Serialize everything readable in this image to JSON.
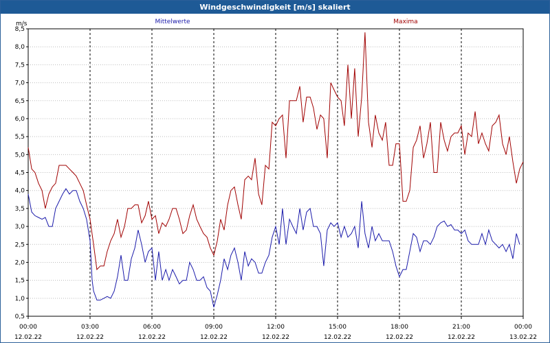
{
  "window": {
    "title": "Windgeschwindigkeit [m/s] skaliert"
  },
  "chart_data": {
    "type": "line",
    "title": "Windgeschwindigkeit [m/s] skaliert",
    "ylabel": "m/s",
    "xlabel": "",
    "ylim": [
      0.5,
      8.5
    ],
    "y_ticks": [
      "0,5",
      "1,0",
      "1,5",
      "2,0",
      "2,5",
      "3,0",
      "3,5",
      "4,0",
      "4,5",
      "5,0",
      "5,5",
      "6,0",
      "6,5",
      "7,0",
      "7,5",
      "8,0",
      "8,5"
    ],
    "x_range_hours": [
      0,
      24
    ],
    "x_ticks": [
      {
        "time": "00:00",
        "date": "12.02.22"
      },
      {
        "time": "03:00",
        "date": "12.02.22"
      },
      {
        "time": "06:00",
        "date": "12.02.22"
      },
      {
        "time": "09:00",
        "date": "12.02.22"
      },
      {
        "time": "12:00",
        "date": "12.02.22"
      },
      {
        "time": "15:00",
        "date": "12.02.22"
      },
      {
        "time": "18:00",
        "date": "12.02.22"
      },
      {
        "time": "21:00",
        "date": "12.02.22"
      },
      {
        "time": "00:00",
        "date": "13.02.22"
      }
    ],
    "grid": true,
    "legend_position": "top",
    "series": [
      {
        "name": "Mittelwerte",
        "color": "#1a1aaa",
        "points": [
          [
            0.0,
            3.9
          ],
          [
            0.17,
            3.4
          ],
          [
            0.33,
            3.3
          ],
          [
            0.5,
            3.25
          ],
          [
            0.67,
            3.2
          ],
          [
            0.83,
            3.25
          ],
          [
            1.0,
            3.0
          ],
          [
            1.17,
            3.0
          ],
          [
            1.33,
            3.5
          ],
          [
            1.5,
            3.7
          ],
          [
            1.67,
            3.9
          ],
          [
            1.83,
            4.05
          ],
          [
            2.0,
            3.9
          ],
          [
            2.17,
            4.0
          ],
          [
            2.33,
            4.0
          ],
          [
            2.5,
            3.7
          ],
          [
            2.67,
            3.5
          ],
          [
            2.83,
            3.2
          ],
          [
            3.0,
            2.6
          ],
          [
            3.1,
            1.5
          ],
          [
            3.17,
            1.2
          ],
          [
            3.33,
            0.95
          ],
          [
            3.5,
            0.95
          ],
          [
            3.67,
            1.0
          ],
          [
            3.83,
            1.05
          ],
          [
            4.0,
            1.0
          ],
          [
            4.17,
            1.2
          ],
          [
            4.33,
            1.6
          ],
          [
            4.5,
            2.2
          ],
          [
            4.67,
            1.5
          ],
          [
            4.83,
            1.5
          ],
          [
            5.0,
            2.1
          ],
          [
            5.17,
            2.4
          ],
          [
            5.33,
            2.9
          ],
          [
            5.5,
            2.5
          ],
          [
            5.67,
            2.0
          ],
          [
            5.83,
            2.3
          ],
          [
            6.0,
            2.4
          ],
          [
            6.17,
            1.5
          ],
          [
            6.33,
            2.3
          ],
          [
            6.5,
            1.5
          ],
          [
            6.67,
            1.8
          ],
          [
            6.83,
            1.5
          ],
          [
            7.0,
            1.8
          ],
          [
            7.17,
            1.6
          ],
          [
            7.33,
            1.4
          ],
          [
            7.5,
            1.5
          ],
          [
            7.67,
            1.5
          ],
          [
            7.83,
            2.0
          ],
          [
            8.0,
            1.8
          ],
          [
            8.17,
            1.5
          ],
          [
            8.33,
            1.5
          ],
          [
            8.5,
            1.6
          ],
          [
            8.67,
            1.3
          ],
          [
            8.83,
            1.2
          ],
          [
            9.0,
            0.75
          ],
          [
            9.17,
            1.1
          ],
          [
            9.33,
            1.5
          ],
          [
            9.5,
            2.1
          ],
          [
            9.67,
            1.8
          ],
          [
            9.83,
            2.2
          ],
          [
            10.0,
            2.4
          ],
          [
            10.17,
            2.0
          ],
          [
            10.33,
            1.5
          ],
          [
            10.5,
            2.3
          ],
          [
            10.67,
            1.9
          ],
          [
            10.83,
            2.1
          ],
          [
            11.0,
            2.0
          ],
          [
            11.17,
            1.7
          ],
          [
            11.33,
            1.7
          ],
          [
            11.5,
            2.0
          ],
          [
            11.67,
            2.2
          ],
          [
            11.83,
            2.7
          ],
          [
            12.0,
            3.0
          ],
          [
            12.17,
            2.5
          ],
          [
            12.33,
            3.5
          ],
          [
            12.5,
            2.5
          ],
          [
            12.67,
            3.2
          ],
          [
            12.83,
            3.0
          ],
          [
            13.0,
            2.8
          ],
          [
            13.17,
            3.5
          ],
          [
            13.33,
            2.9
          ],
          [
            13.5,
            3.4
          ],
          [
            13.67,
            3.5
          ],
          [
            13.83,
            3.0
          ],
          [
            14.0,
            3.0
          ],
          [
            14.17,
            2.8
          ],
          [
            14.33,
            1.9
          ],
          [
            14.5,
            2.9
          ],
          [
            14.67,
            3.1
          ],
          [
            14.83,
            3.0
          ],
          [
            15.0,
            3.1
          ],
          [
            15.17,
            2.7
          ],
          [
            15.33,
            3.0
          ],
          [
            15.5,
            2.7
          ],
          [
            15.67,
            2.8
          ],
          [
            15.83,
            3.0
          ],
          [
            16.0,
            2.4
          ],
          [
            16.17,
            3.7
          ],
          [
            16.33,
            2.8
          ],
          [
            16.5,
            2.4
          ],
          [
            16.67,
            3.0
          ],
          [
            16.83,
            2.6
          ],
          [
            17.0,
            2.8
          ],
          [
            17.17,
            2.6
          ],
          [
            17.33,
            2.6
          ],
          [
            17.5,
            2.6
          ],
          [
            17.67,
            2.3
          ],
          [
            17.83,
            1.9
          ],
          [
            18.0,
            1.6
          ],
          [
            18.17,
            1.8
          ],
          [
            18.33,
            1.8
          ],
          [
            18.5,
            2.3
          ],
          [
            18.67,
            2.8
          ],
          [
            18.83,
            2.7
          ],
          [
            19.0,
            2.3
          ],
          [
            19.17,
            2.6
          ],
          [
            19.33,
            2.6
          ],
          [
            19.5,
            2.5
          ],
          [
            19.67,
            2.7
          ],
          [
            19.83,
            3.0
          ],
          [
            20.0,
            3.1
          ],
          [
            20.17,
            3.15
          ],
          [
            20.33,
            3.0
          ],
          [
            20.5,
            3.05
          ],
          [
            20.67,
            2.9
          ],
          [
            20.83,
            2.9
          ],
          [
            21.0,
            2.8
          ],
          [
            21.17,
            2.9
          ],
          [
            21.33,
            2.6
          ],
          [
            21.5,
            2.5
          ],
          [
            21.67,
            2.5
          ],
          [
            21.83,
            2.5
          ],
          [
            22.0,
            2.8
          ],
          [
            22.17,
            2.5
          ],
          [
            22.33,
            2.9
          ],
          [
            22.5,
            2.6
          ],
          [
            22.67,
            2.5
          ],
          [
            22.83,
            2.4
          ],
          [
            23.0,
            2.5
          ],
          [
            23.17,
            2.3
          ],
          [
            23.33,
            2.5
          ],
          [
            23.5,
            2.1
          ],
          [
            23.67,
            2.8
          ],
          [
            23.83,
            2.5
          ]
        ]
      },
      {
        "name": "Maxima",
        "color": "#a00000",
        "points": [
          [
            0.0,
            5.2
          ],
          [
            0.17,
            4.6
          ],
          [
            0.33,
            4.5
          ],
          [
            0.5,
            4.2
          ],
          [
            0.67,
            4.0
          ],
          [
            0.83,
            3.5
          ],
          [
            1.0,
            3.9
          ],
          [
            1.17,
            4.1
          ],
          [
            1.33,
            4.2
          ],
          [
            1.5,
            4.7
          ],
          [
            1.67,
            4.7
          ],
          [
            1.83,
            4.7
          ],
          [
            2.0,
            4.6
          ],
          [
            2.17,
            4.5
          ],
          [
            2.33,
            4.4
          ],
          [
            2.5,
            4.2
          ],
          [
            2.67,
            4.0
          ],
          [
            2.83,
            3.6
          ],
          [
            3.0,
            3.2
          ],
          [
            3.17,
            2.5
          ],
          [
            3.33,
            1.8
          ],
          [
            3.5,
            1.9
          ],
          [
            3.67,
            1.9
          ],
          [
            3.83,
            2.3
          ],
          [
            4.0,
            2.6
          ],
          [
            4.17,
            2.8
          ],
          [
            4.33,
            3.2
          ],
          [
            4.5,
            2.7
          ],
          [
            4.67,
            3.0
          ],
          [
            4.83,
            3.5
          ],
          [
            5.0,
            3.5
          ],
          [
            5.17,
            3.6
          ],
          [
            5.33,
            3.6
          ],
          [
            5.5,
            3.1
          ],
          [
            5.67,
            3.3
          ],
          [
            5.83,
            3.7
          ],
          [
            6.0,
            3.2
          ],
          [
            6.17,
            3.3
          ],
          [
            6.33,
            2.8
          ],
          [
            6.5,
            3.1
          ],
          [
            6.67,
            3.0
          ],
          [
            6.83,
            3.2
          ],
          [
            7.0,
            3.5
          ],
          [
            7.17,
            3.5
          ],
          [
            7.33,
            3.2
          ],
          [
            7.5,
            2.8
          ],
          [
            7.67,
            2.9
          ],
          [
            7.83,
            3.3
          ],
          [
            8.0,
            3.6
          ],
          [
            8.17,
            3.2
          ],
          [
            8.33,
            3.0
          ],
          [
            8.5,
            2.8
          ],
          [
            8.67,
            2.7
          ],
          [
            8.83,
            2.4
          ],
          [
            9.0,
            2.2
          ],
          [
            9.17,
            2.6
          ],
          [
            9.33,
            3.2
          ],
          [
            9.5,
            2.9
          ],
          [
            9.67,
            3.6
          ],
          [
            9.83,
            4.0
          ],
          [
            10.0,
            4.1
          ],
          [
            10.17,
            3.6
          ],
          [
            10.33,
            3.2
          ],
          [
            10.5,
            4.3
          ],
          [
            10.67,
            4.4
          ],
          [
            10.83,
            4.3
          ],
          [
            11.0,
            4.9
          ],
          [
            11.17,
            3.9
          ],
          [
            11.33,
            3.6
          ],
          [
            11.5,
            4.7
          ],
          [
            11.67,
            4.6
          ],
          [
            11.83,
            5.9
          ],
          [
            12.0,
            5.8
          ],
          [
            12.17,
            6.0
          ],
          [
            12.33,
            6.1
          ],
          [
            12.5,
            4.9
          ],
          [
            12.67,
            6.5
          ],
          [
            12.83,
            6.5
          ],
          [
            13.0,
            6.5
          ],
          [
            13.17,
            6.9
          ],
          [
            13.33,
            5.9
          ],
          [
            13.5,
            6.6
          ],
          [
            13.67,
            6.6
          ],
          [
            13.83,
            6.3
          ],
          [
            14.0,
            5.7
          ],
          [
            14.17,
            6.1
          ],
          [
            14.33,
            6.0
          ],
          [
            14.5,
            4.9
          ],
          [
            14.67,
            7.0
          ],
          [
            14.83,
            6.8
          ],
          [
            15.0,
            6.6
          ],
          [
            15.17,
            6.5
          ],
          [
            15.33,
            5.8
          ],
          [
            15.5,
            7.5
          ],
          [
            15.67,
            6.0
          ],
          [
            15.83,
            7.4
          ],
          [
            16.0,
            5.5
          ],
          [
            16.17,
            6.6
          ],
          [
            16.33,
            8.4
          ],
          [
            16.5,
            5.9
          ],
          [
            16.67,
            5.2
          ],
          [
            16.83,
            6.1
          ],
          [
            17.0,
            5.6
          ],
          [
            17.17,
            5.4
          ],
          [
            17.33,
            5.9
          ],
          [
            17.5,
            4.7
          ],
          [
            17.67,
            4.7
          ],
          [
            17.83,
            5.3
          ],
          [
            18.0,
            5.3
          ],
          [
            18.17,
            3.7
          ],
          [
            18.33,
            3.7
          ],
          [
            18.5,
            4.0
          ],
          [
            18.67,
            5.2
          ],
          [
            18.83,
            5.4
          ],
          [
            19.0,
            5.8
          ],
          [
            19.17,
            4.9
          ],
          [
            19.33,
            5.3
          ],
          [
            19.5,
            5.9
          ],
          [
            19.67,
            4.5
          ],
          [
            19.83,
            4.5
          ],
          [
            20.0,
            5.9
          ],
          [
            20.17,
            5.4
          ],
          [
            20.33,
            5.1
          ],
          [
            20.5,
            5.5
          ],
          [
            20.67,
            5.6
          ],
          [
            20.83,
            5.6
          ],
          [
            21.0,
            5.8
          ],
          [
            21.17,
            5.0
          ],
          [
            21.33,
            5.6
          ],
          [
            21.5,
            5.5
          ],
          [
            21.67,
            6.2
          ],
          [
            21.83,
            5.3
          ],
          [
            22.0,
            5.6
          ],
          [
            22.17,
            5.3
          ],
          [
            22.33,
            5.1
          ],
          [
            22.5,
            5.8
          ],
          [
            22.67,
            5.9
          ],
          [
            22.83,
            6.1
          ],
          [
            23.0,
            5.3
          ],
          [
            23.17,
            5.0
          ],
          [
            23.33,
            5.5
          ],
          [
            23.5,
            4.8
          ],
          [
            23.67,
            4.2
          ],
          [
            23.83,
            4.6
          ],
          [
            24.0,
            4.8
          ]
        ]
      }
    ]
  }
}
